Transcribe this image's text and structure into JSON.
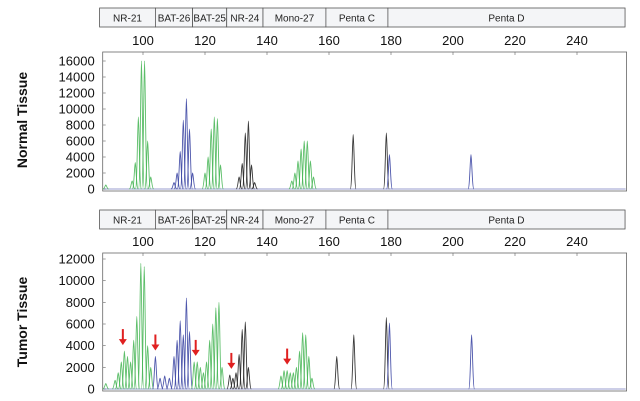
{
  "chart_data": [
    {
      "type": "line",
      "ylabel": "Normal Tissue",
      "xlim": [
        87,
        256
      ],
      "ylim": [
        0,
        16500
      ],
      "xticks": [
        100,
        120,
        140,
        160,
        180,
        200,
        220,
        240
      ],
      "yticks": [
        0,
        2000,
        4000,
        6000,
        8000,
        10000,
        12000,
        14000,
        16000
      ],
      "markers": [
        {
          "label": "NR-21",
          "range": [
            86,
            104
          ]
        },
        {
          "label": "BAT-26",
          "range": [
            104,
            116
          ]
        },
        {
          "label": "BAT-25",
          "range": [
            116,
            127
          ]
        },
        {
          "label": "NR-24",
          "range": [
            127,
            138.7
          ]
        },
        {
          "label": "Mono-27",
          "range": [
            138.7,
            159
          ]
        },
        {
          "label": "Penta C",
          "range": [
            159,
            179
          ]
        },
        {
          "label": "Penta D",
          "range": [
            179,
            255.5
          ]
        }
      ],
      "colors": {
        "green": "#3fb34f",
        "blue": "#3b45a3",
        "black": "#222222"
      },
      "peaks": [
        {
          "x": 88,
          "y": 500,
          "c": "green"
        },
        {
          "x": 96.5,
          "y": 1000,
          "c": "green"
        },
        {
          "x": 97.5,
          "y": 3300,
          "c": "green"
        },
        {
          "x": 98.5,
          "y": 9000,
          "c": "green"
        },
        {
          "x": 99.5,
          "y": 16000,
          "c": "green"
        },
        {
          "x": 100.5,
          "y": 16000,
          "c": "green"
        },
        {
          "x": 101.5,
          "y": 6000,
          "c": "green"
        },
        {
          "x": 102.5,
          "y": 1500,
          "c": "green"
        },
        {
          "x": 110,
          "y": 800,
          "c": "blue"
        },
        {
          "x": 111,
          "y": 2000,
          "c": "blue"
        },
        {
          "x": 112,
          "y": 4700,
          "c": "blue"
        },
        {
          "x": 113,
          "y": 8600,
          "c": "blue"
        },
        {
          "x": 114,
          "y": 11300,
          "c": "blue"
        },
        {
          "x": 115,
          "y": 7500,
          "c": "blue"
        },
        {
          "x": 116,
          "y": 2000,
          "c": "blue"
        },
        {
          "x": 120,
          "y": 2000,
          "c": "green"
        },
        {
          "x": 121,
          "y": 4000,
          "c": "green"
        },
        {
          "x": 122,
          "y": 7500,
          "c": "green"
        },
        {
          "x": 123,
          "y": 9000,
          "c": "green"
        },
        {
          "x": 124,
          "y": 8800,
          "c": "green"
        },
        {
          "x": 125,
          "y": 3000,
          "c": "green"
        },
        {
          "x": 131,
          "y": 1500,
          "c": "black"
        },
        {
          "x": 132,
          "y": 3200,
          "c": "black"
        },
        {
          "x": 133,
          "y": 7000,
          "c": "black"
        },
        {
          "x": 134,
          "y": 8500,
          "c": "black"
        },
        {
          "x": 135,
          "y": 3000,
          "c": "black"
        },
        {
          "x": 136,
          "y": 800,
          "c": "black"
        },
        {
          "x": 148,
          "y": 1000,
          "c": "green"
        },
        {
          "x": 149,
          "y": 2000,
          "c": "green"
        },
        {
          "x": 150,
          "y": 3500,
          "c": "green"
        },
        {
          "x": 151,
          "y": 5000,
          "c": "green"
        },
        {
          "x": 152,
          "y": 6000,
          "c": "green"
        },
        {
          "x": 153,
          "y": 6000,
          "c": "green"
        },
        {
          "x": 154,
          "y": 3500,
          "c": "green"
        },
        {
          "x": 155,
          "y": 1500,
          "c": "green"
        },
        {
          "x": 167.8,
          "y": 6800,
          "c": "black"
        },
        {
          "x": 178.5,
          "y": 7000,
          "c": "black"
        },
        {
          "x": 179.5,
          "y": 4300,
          "c": "blue"
        },
        {
          "x": 205.8,
          "y": 4300,
          "c": "blue"
        }
      ],
      "arrows": []
    },
    {
      "type": "line",
      "ylabel": "Tumor Tissue",
      "xlim": [
        87,
        256
      ],
      "ylim": [
        0,
        12500
      ],
      "xticks": [
        100,
        120,
        140,
        160,
        180,
        200,
        220,
        240
      ],
      "yticks": [
        0,
        2000,
        4000,
        6000,
        8000,
        10000,
        12000
      ],
      "markers": [
        {
          "label": "NR-21",
          "range": [
            86,
            104
          ]
        },
        {
          "label": "BAT-26",
          "range": [
            104,
            116
          ]
        },
        {
          "label": "BAT-25",
          "range": [
            116,
            127
          ]
        },
        {
          "label": "NR-24",
          "range": [
            127,
            138.7
          ]
        },
        {
          "label": "Mono-27",
          "range": [
            138.7,
            159
          ]
        },
        {
          "label": "Penta C",
          "range": [
            159,
            179
          ]
        },
        {
          "label": "Penta D",
          "range": [
            179,
            255.5
          ]
        }
      ],
      "colors": {
        "green": "#3fb34f",
        "blue": "#3b45a3",
        "black": "#222222"
      },
      "peaks": [
        {
          "x": 88,
          "y": 500,
          "c": "green"
        },
        {
          "x": 91,
          "y": 800,
          "c": "green"
        },
        {
          "x": 92,
          "y": 1500,
          "c": "green"
        },
        {
          "x": 93,
          "y": 2500,
          "c": "green"
        },
        {
          "x": 94,
          "y": 3500,
          "c": "green"
        },
        {
          "x": 95,
          "y": 3000,
          "c": "green"
        },
        {
          "x": 96,
          "y": 2500,
          "c": "green"
        },
        {
          "x": 97,
          "y": 4500,
          "c": "green"
        },
        {
          "x": 98,
          "y": 6700,
          "c": "green"
        },
        {
          "x": 99.3,
          "y": 11600,
          "c": "green"
        },
        {
          "x": 100.4,
          "y": 11300,
          "c": "green"
        },
        {
          "x": 101.5,
          "y": 4000,
          "c": "green"
        },
        {
          "x": 102.5,
          "y": 2000,
          "c": "green"
        },
        {
          "x": 104,
          "y": 3000,
          "c": "blue"
        },
        {
          "x": 105.5,
          "y": 1000,
          "c": "blue"
        },
        {
          "x": 107,
          "y": 1200,
          "c": "blue"
        },
        {
          "x": 108.5,
          "y": 1000,
          "c": "blue"
        },
        {
          "x": 110,
          "y": 3000,
          "c": "blue"
        },
        {
          "x": 111,
          "y": 4500,
          "c": "blue"
        },
        {
          "x": 112,
          "y": 6300,
          "c": "blue"
        },
        {
          "x": 113,
          "y": 5000,
          "c": "blue"
        },
        {
          "x": 114,
          "y": 8400,
          "c": "blue"
        },
        {
          "x": 115,
          "y": 5300,
          "c": "blue"
        },
        {
          "x": 116.5,
          "y": 2500,
          "c": "green"
        },
        {
          "x": 117.5,
          "y": 2500,
          "c": "green"
        },
        {
          "x": 118.5,
          "y": 2000,
          "c": "green"
        },
        {
          "x": 119.5,
          "y": 1500,
          "c": "green"
        },
        {
          "x": 120.5,
          "y": 2500,
          "c": "green"
        },
        {
          "x": 121.5,
          "y": 4500,
          "c": "green"
        },
        {
          "x": 122.5,
          "y": 6000,
          "c": "green"
        },
        {
          "x": 123.5,
          "y": 7500,
          "c": "green"
        },
        {
          "x": 124.5,
          "y": 8000,
          "c": "green"
        },
        {
          "x": 125.5,
          "y": 2000,
          "c": "green"
        },
        {
          "x": 128,
          "y": 1300,
          "c": "black"
        },
        {
          "x": 129,
          "y": 1000,
          "c": "black"
        },
        {
          "x": 130,
          "y": 1500,
          "c": "black"
        },
        {
          "x": 131,
          "y": 3200,
          "c": "black"
        },
        {
          "x": 132,
          "y": 5500,
          "c": "black"
        },
        {
          "x": 133,
          "y": 6200,
          "c": "black"
        },
        {
          "x": 134,
          "y": 2000,
          "c": "black"
        },
        {
          "x": 144.5,
          "y": 1200,
          "c": "green"
        },
        {
          "x": 145.5,
          "y": 1700,
          "c": "green"
        },
        {
          "x": 146.5,
          "y": 1700,
          "c": "green"
        },
        {
          "x": 147.5,
          "y": 1500,
          "c": "green"
        },
        {
          "x": 148.5,
          "y": 1500,
          "c": "green"
        },
        {
          "x": 149.5,
          "y": 2000,
          "c": "green"
        },
        {
          "x": 150.5,
          "y": 3500,
          "c": "green"
        },
        {
          "x": 151.5,
          "y": 5200,
          "c": "green"
        },
        {
          "x": 152.5,
          "y": 5000,
          "c": "green"
        },
        {
          "x": 153.5,
          "y": 3000,
          "c": "green"
        },
        {
          "x": 154.5,
          "y": 1000,
          "c": "green"
        },
        {
          "x": 162.5,
          "y": 3000,
          "c": "black"
        },
        {
          "x": 168,
          "y": 5000,
          "c": "black"
        },
        {
          "x": 178.5,
          "y": 6600,
          "c": "black"
        },
        {
          "x": 179.5,
          "y": 6100,
          "c": "blue"
        },
        {
          "x": 206,
          "y": 5000,
          "c": "blue"
        }
      ],
      "arrows": [
        93.5,
        104,
        117,
        128.5,
        146.5
      ],
      "arrow_color": "#e02020"
    }
  ]
}
